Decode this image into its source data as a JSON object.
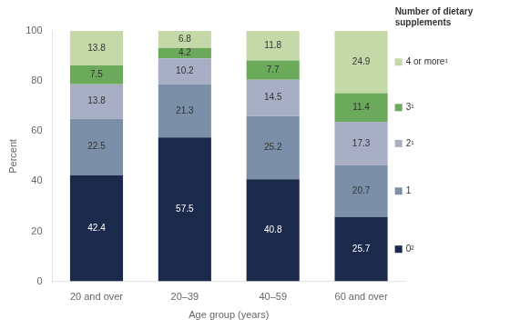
{
  "chart_data": {
    "type": "bar",
    "stacked": true,
    "data_labels": true,
    "legend": "right",
    "legend_title": "Number of dietary\nsupplements",
    "xlabel": "Age group (years)",
    "ylabel": "Percent",
    "categories": [
      "20 and over",
      "20–39",
      "40–59",
      "60 and over"
    ],
    "series": [
      {
        "name": "0²",
        "color": "#1b2a4a",
        "values": [
          42.4,
          57.5,
          40.8,
          25.7
        ]
      },
      {
        "name": "1",
        "color": "#7b8fa8",
        "values": [
          22.5,
          21.3,
          25.2,
          20.7
        ]
      },
      {
        "name": "2¹",
        "color": "#a8afc4",
        "values": [
          13.8,
          10.2,
          14.5,
          17.3
        ]
      },
      {
        "name": "3¹",
        "color": "#6aaa5a",
        "values": [
          7.5,
          4.2,
          7.7,
          11.4
        ]
      },
      {
        "name": "4 or more¹",
        "color": "#c5d9a8",
        "values": [
          13.8,
          6.8,
          11.8,
          24.9
        ]
      }
    ],
    "ylim": [
      0,
      100
    ],
    "yticks": [
      0,
      20,
      40,
      60,
      80,
      100
    ],
    "grid": false
  }
}
